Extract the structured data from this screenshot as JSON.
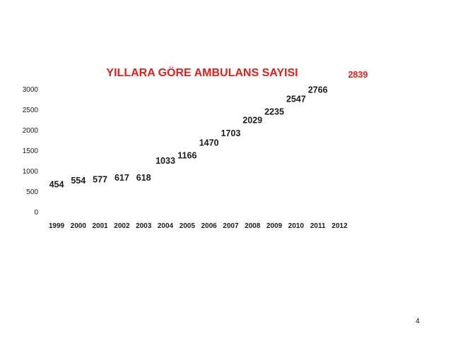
{
  "chart_data": {
    "type": "table",
    "title": "YILLARA GÖRE AMBULANS SAYISI",
    "categories": [
      "1999",
      "2000",
      "2001",
      "2002",
      "2003",
      "2004",
      "2005",
      "2006",
      "2007",
      "2008",
      "2009",
      "2010",
      "2011",
      "2012"
    ],
    "values": [
      454,
      554,
      577,
      617,
      618,
      1033,
      1166,
      1470,
      1703,
      2029,
      2235,
      2547,
      2766,
      2839
    ],
    "yticks": [
      "0",
      "500",
      "1000",
      "1500",
      "2000",
      "2500",
      "3000"
    ],
    "ylim": [
      0,
      3000
    ],
    "grid": false,
    "legend": "none",
    "colors": {
      "title": "#e0201b",
      "highlight": "#e0201b",
      "text": "#1a1a1a"
    }
  },
  "page_number": "4"
}
